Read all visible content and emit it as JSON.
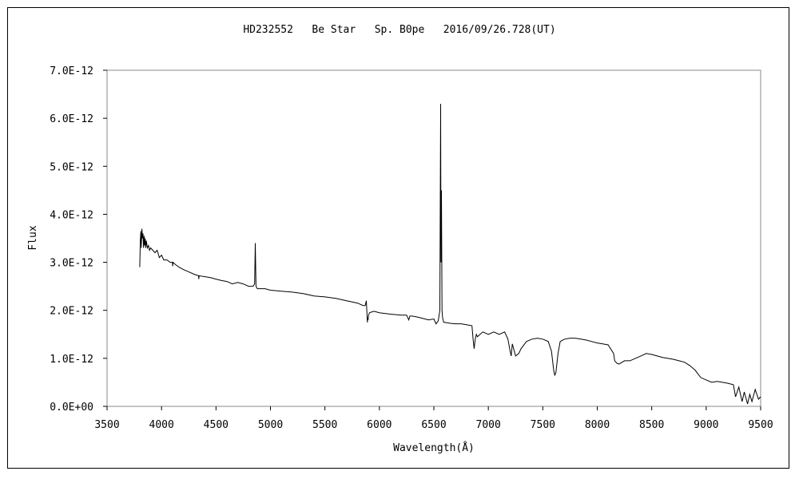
{
  "chart_data": {
    "type": "line",
    "title": "HD232552   Be Star   Sp. B0pe   2016/09/26.728(UT)",
    "xlabel": "Wavelength(Å)",
    "ylabel": "Flux",
    "xlim": [
      3500,
      9500
    ],
    "ylim": [
      0,
      7e-12
    ],
    "xticks": [
      3500,
      4000,
      4500,
      5000,
      5500,
      6000,
      6500,
      7000,
      7500,
      8000,
      8500,
      9000,
      9500
    ],
    "xtick_labels": [
      "3500",
      "4000",
      "4500",
      "5000",
      "5500",
      "6000",
      "6500",
      "7000",
      "7500",
      "8000",
      "8500",
      "9000",
      "9500"
    ],
    "yticks": [
      0,
      1e-12,
      2e-12,
      3e-12,
      4e-12,
      5e-12,
      6e-12,
      7e-12
    ],
    "ytick_labels": [
      "0.0E+00",
      "1.0E-12",
      "2.0E-12",
      "3.0E-12",
      "4.0E-12",
      "5.0E-12",
      "6.0E-12",
      "7.0E-12"
    ],
    "grid": false,
    "legend": "none",
    "line_color": "#000000",
    "series": [
      {
        "x": [
          3800,
          3805,
          3810,
          3815,
          3820,
          3825,
          3830,
          3835,
          3840,
          3845,
          3850,
          3855,
          3860,
          3870,
          3880,
          3890,
          3900,
          3920,
          3940,
          3960,
          3980,
          4000,
          4020,
          4050,
          4080,
          4100,
          4102,
          4105,
          4130,
          4160,
          4200,
          4250,
          4300,
          4340,
          4342,
          4345,
          4400,
          4450,
          4500,
          4550,
          4600,
          4650,
          4700,
          4750,
          4800,
          4840,
          4855,
          4861,
          4867,
          4880,
          4900,
          4950,
          5000,
          5100,
          5200,
          5300,
          5400,
          5500,
          5600,
          5700,
          5800,
          5850,
          5870,
          5880,
          5890,
          5893,
          5896,
          5900,
          5910,
          5950,
          6000,
          6100,
          6200,
          6250,
          6270,
          6280,
          6300,
          6350,
          6400,
          6450,
          6500,
          6520,
          6540,
          6555,
          6562,
          6565,
          6570,
          6575,
          6580,
          6590,
          6600,
          6650,
          6700,
          6750,
          6800,
          6850,
          6860,
          6870,
          6880,
          6890,
          6900,
          6950,
          7000,
          7050,
          7100,
          7150,
          7180,
          7200,
          7210,
          7220,
          7250,
          7280,
          7300,
          7350,
          7400,
          7450,
          7500,
          7550,
          7580,
          7600,
          7610,
          7620,
          7640,
          7660,
          7700,
          7750,
          7800,
          7850,
          7900,
          7950,
          8000,
          8050,
          8100,
          8150,
          8160,
          8180,
          8200,
          8250,
          8300,
          8350,
          8400,
          8450,
          8500,
          8550,
          8600,
          8650,
          8700,
          8750,
          8800,
          8850,
          8900,
          8950,
          9000,
          9050,
          9100,
          9150,
          9200,
          9250,
          9270,
          9300,
          9330,
          9350,
          9380,
          9400,
          9420,
          9450,
          9480,
          9500
        ],
        "y": [
          2.9e-12,
          3.45e-12,
          3.65e-12,
          3.3e-12,
          3.7e-12,
          3.5e-12,
          3.6e-12,
          3.3e-12,
          3.55e-12,
          3.35e-12,
          3.5e-12,
          3.3e-12,
          3.45e-12,
          3.3e-12,
          3.35e-12,
          3.25e-12,
          3.3e-12,
          3.25e-12,
          3.2e-12,
          3.25e-12,
          3.1e-12,
          3.15e-12,
          3.05e-12,
          3.05e-12,
          3e-12,
          3e-12,
          2.92e-12,
          3e-12,
          2.95e-12,
          2.9e-12,
          2.85e-12,
          2.8e-12,
          2.75e-12,
          2.72e-12,
          2.65e-12,
          2.72e-12,
          2.7e-12,
          2.68e-12,
          2.65e-12,
          2.62e-12,
          2.6e-12,
          2.55e-12,
          2.58e-12,
          2.55e-12,
          2.5e-12,
          2.5e-12,
          2.55e-12,
          3.4e-12,
          2.5e-12,
          2.45e-12,
          2.45e-12,
          2.45e-12,
          2.42e-12,
          2.4e-12,
          2.38e-12,
          2.35e-12,
          2.3e-12,
          2.28e-12,
          2.25e-12,
          2.2e-12,
          2.15e-12,
          2.1e-12,
          2.1e-12,
          2.2e-12,
          1.75e-12,
          1.85e-12,
          1.8e-12,
          1.9e-12,
          1.95e-12,
          1.98e-12,
          1.95e-12,
          1.92e-12,
          1.9e-12,
          1.9e-12,
          1.8e-12,
          1.88e-12,
          1.88e-12,
          1.86e-12,
          1.83e-12,
          1.8e-12,
          1.82e-12,
          1.72e-12,
          1.78e-12,
          2e-12,
          6.3e-12,
          3e-12,
          4.5e-12,
          2e-12,
          1.85e-12,
          1.75e-12,
          1.75e-12,
          1.73e-12,
          1.72e-12,
          1.72e-12,
          1.7e-12,
          1.68e-12,
          1.4e-12,
          1.2e-12,
          1.4e-12,
          1.5e-12,
          1.45e-12,
          1.55e-12,
          1.5e-12,
          1.55e-12,
          1.5e-12,
          1.55e-12,
          1.4e-12,
          1.15e-12,
          1.05e-12,
          1.3e-12,
          1.05e-12,
          1.1e-12,
          1.2e-12,
          1.35e-12,
          1.4e-12,
          1.42e-12,
          1.4e-12,
          1.35e-12,
          1.15e-12,
          7.5e-13,
          6.5e-13,
          7e-13,
          1.1e-12,
          1.35e-12,
          1.4e-12,
          1.42e-12,
          1.42e-12,
          1.4e-12,
          1.38e-12,
          1.35e-12,
          1.32e-12,
          1.3e-12,
          1.28e-12,
          1.1e-12,
          9.5e-13,
          9e-13,
          8.8e-13,
          9.5e-13,
          9.5e-13,
          1e-12,
          1.05e-12,
          1.1e-12,
          1.08e-12,
          1.05e-12,
          1.02e-12,
          1e-12,
          9.8e-13,
          9.5e-13,
          9.2e-13,
          8.5e-13,
          7.5e-13,
          6e-13,
          5.5e-13,
          5e-13,
          5.2e-13,
          5e-13,
          4.8e-13,
          4.5e-13,
          2e-13,
          4e-13,
          1e-13,
          3e-13,
          5e-14,
          2.5e-13,
          1e-13,
          3.5e-13,
          1.5e-13,
          2e-13
        ]
      }
    ]
  }
}
